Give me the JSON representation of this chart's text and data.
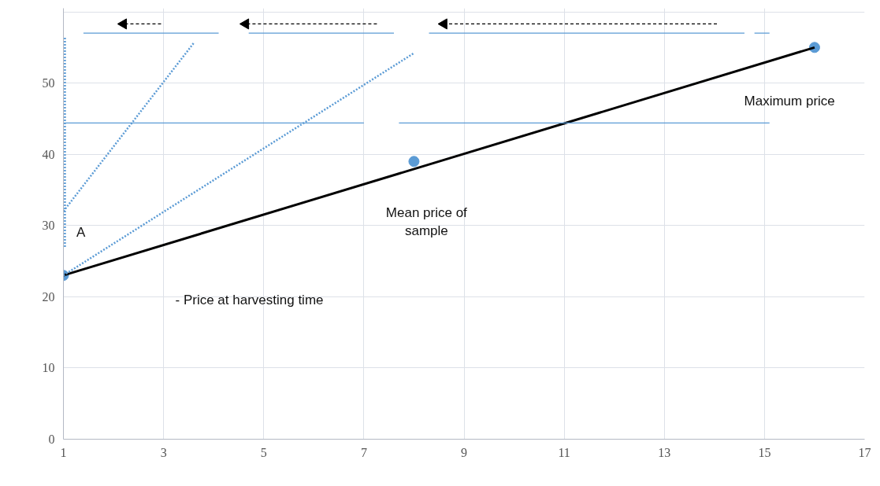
{
  "chart_data": {
    "type": "line",
    "xlim": [
      1,
      17
    ],
    "xticks": [
      1,
      3,
      5,
      7,
      9,
      11,
      13,
      15,
      17
    ],
    "ylim": [
      0,
      60.5
    ],
    "yticks": [
      0,
      10,
      20,
      30,
      40,
      50,
      {
        "value": 60,
        "label": null
      }
    ],
    "grid": true,
    "annotations": [
      "A",
      "-  Price at harvesting time",
      "Mean price of\nsample",
      "Maximum price"
    ],
    "series": [
      {
        "type": "scatter",
        "marker": "circle",
        "color": "#5b9bd5",
        "x": [
          1,
          8,
          16
        ],
        "values": [
          23,
          39,
          55
        ]
      },
      {
        "line_style": "solid",
        "color": "#000000",
        "x": [
          1,
          16
        ],
        "values": [
          23,
          55
        ]
      },
      {
        "line_style": "dotted",
        "color": "#5b9bd5",
        "x": [
          1.03,
          1.03
        ],
        "values": [
          27,
          56.5
        ]
      },
      {
        "line_style": "dotted",
        "color": "#5b9bd5",
        "x": [
          1,
          3.6
        ],
        "values": [
          32,
          55.6
        ]
      },
      {
        "line_style": "dotted",
        "color": "#5b9bd5",
        "x": [
          1,
          8
        ],
        "values": [
          23,
          54.2
        ]
      },
      {
        "line_style": "solid",
        "color": "#5b9bd5",
        "x": [
          1.4,
          4.1
        ],
        "values": [
          57,
          57
        ]
      },
      {
        "line_style": "solid",
        "color": "#5b9bd5",
        "x": [
          4.7,
          7.6
        ],
        "values": [
          57,
          57
        ]
      },
      {
        "line_style": "solid",
        "color": "#5b9bd5",
        "x": [
          8.3,
          14.6
        ],
        "values": [
          57,
          57
        ]
      },
      {
        "line_style": "solid",
        "color": "#5b9bd5",
        "x": [
          14.8,
          15.1
        ],
        "values": [
          57,
          57
        ]
      },
      {
        "line_style": "solid",
        "color": "#5b9bd5",
        "x": [
          1,
          7
        ],
        "values": [
          44.4,
          44.4
        ]
      },
      {
        "line_style": "solid",
        "color": "#5b9bd5",
        "x": [
          7.7,
          15.1
        ],
        "values": [
          44.4,
          44.4
        ]
      },
      {
        "line_style": "dashed",
        "marker": "triangle",
        "color": "#000000",
        "x": [
          2.95,
          2.2
        ],
        "values": [
          58.3,
          58.3
        ]
      },
      {
        "line_style": "dashed",
        "marker": "triangle",
        "color": "#000000",
        "x": [
          7.26,
          4.64
        ],
        "values": [
          58.3,
          58.3
        ]
      },
      {
        "line_style": "dashed",
        "marker": "triangle",
        "color": "#000000",
        "x": [
          14.05,
          8.6
        ],
        "values": [
          58.3,
          58.3
        ]
      }
    ]
  }
}
